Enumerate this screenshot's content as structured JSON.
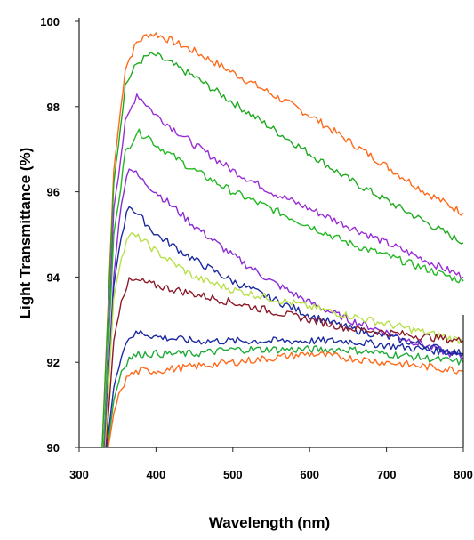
{
  "chart_data": {
    "type": "line",
    "title": "",
    "xlabel": "Wavelength (nm)",
    "ylabel": "Light Transmittance (%)",
    "xlim": [
      300,
      800
    ],
    "ylim": [
      90,
      100
    ],
    "xticks": [
      300,
      400,
      500,
      600,
      700,
      800
    ],
    "yticks": [
      90,
      92,
      94,
      96,
      98,
      100
    ],
    "xtick_labels": [
      "300",
      "400",
      "500",
      "600",
      "700",
      "800"
    ],
    "ytick_labels": [
      "90",
      "92",
      "94",
      "96",
      "98",
      "100"
    ],
    "grid": false,
    "legend": "none",
    "series": [
      {
        "color": "#ff6a1a",
        "x": [
          330,
          345,
          360,
          375,
          390,
          400,
          450,
          500,
          550,
          600,
          650,
          700,
          750,
          800
        ],
        "y": [
          90,
          96.5,
          98.9,
          99.5,
          99.7,
          99.7,
          99.3,
          98.8,
          98.3,
          97.8,
          97.2,
          96.6,
          96.0,
          95.5
        ]
      },
      {
        "color": "#1faa1f",
        "x": [
          330,
          345,
          360,
          375,
          390,
          400,
          450,
          500,
          550,
          600,
          650,
          700,
          750,
          800
        ],
        "y": [
          90,
          96.2,
          98.5,
          99.0,
          99.2,
          99.2,
          98.7,
          98.1,
          97.5,
          96.9,
          96.3,
          95.8,
          95.3,
          94.8
        ]
      },
      {
        "color": "#9b2bd6",
        "x": [
          332,
          345,
          360,
          375,
          390,
          400,
          450,
          500,
          550,
          600,
          650,
          700,
          750,
          800
        ],
        "y": [
          90,
          95.6,
          97.6,
          98.3,
          98.0,
          97.8,
          97.1,
          96.5,
          96.0,
          95.6,
          95.2,
          94.8,
          94.4,
          94.0
        ]
      },
      {
        "color": "#22b822",
        "x": [
          332,
          345,
          360,
          375,
          390,
          400,
          450,
          500,
          550,
          600,
          650,
          700,
          750,
          800
        ],
        "y": [
          90,
          95.0,
          96.9,
          97.4,
          97.3,
          97.1,
          96.5,
          96.0,
          95.6,
          95.2,
          94.8,
          94.5,
          94.2,
          93.9
        ]
      },
      {
        "color": "#8a2ad4",
        "x": [
          333,
          345,
          355,
          365,
          380,
          400,
          450,
          500,
          550,
          600,
          650,
          700,
          750,
          800
        ],
        "y": [
          90,
          94.0,
          95.8,
          96.6,
          96.3,
          96.0,
          95.2,
          94.5,
          93.9,
          93.4,
          93.0,
          92.7,
          92.4,
          92.1
        ]
      },
      {
        "color": "#1c2aa0",
        "x": [
          334,
          345,
          355,
          365,
          380,
          400,
          450,
          500,
          550,
          600,
          650,
          700,
          750,
          800
        ],
        "y": [
          90,
          93.8,
          95.0,
          95.7,
          95.4,
          95.0,
          94.4,
          93.9,
          93.5,
          93.1,
          92.8,
          92.6,
          92.4,
          92.2
        ]
      },
      {
        "color": "#b8e04a",
        "x": [
          334,
          345,
          355,
          365,
          380,
          400,
          450,
          500,
          550,
          600,
          650,
          700,
          750,
          800
        ],
        "y": [
          90,
          93.5,
          94.5,
          95.0,
          94.9,
          94.6,
          94.0,
          93.7,
          93.5,
          93.3,
          93.1,
          92.9,
          92.7,
          92.5
        ]
      },
      {
        "color": "#8b1a2a",
        "x": [
          335,
          345,
          355,
          365,
          380,
          400,
          450,
          500,
          550,
          600,
          650,
          700,
          750,
          800
        ],
        "y": [
          90,
          92.5,
          93.5,
          93.9,
          93.9,
          93.8,
          93.6,
          93.4,
          93.2,
          93.0,
          92.8,
          92.7,
          92.6,
          92.5
        ]
      },
      {
        "color": "#1c2aa0",
        "x": [
          336,
          345,
          355,
          365,
          380,
          400,
          450,
          500,
          550,
          600,
          650,
          700,
          750,
          800
        ],
        "y": [
          90,
          91.4,
          92.2,
          92.6,
          92.7,
          92.6,
          92.5,
          92.5,
          92.5,
          92.5,
          92.5,
          92.4,
          92.3,
          92.2
        ]
      },
      {
        "color": "#1faa3a",
        "x": [
          337,
          345,
          355,
          365,
          380,
          400,
          450,
          500,
          550,
          600,
          650,
          700,
          750,
          800
        ],
        "y": [
          90,
          91.1,
          91.8,
          92.1,
          92.2,
          92.2,
          92.2,
          92.3,
          92.3,
          92.3,
          92.3,
          92.2,
          92.1,
          92.0
        ]
      },
      {
        "color": "#ff6a1a",
        "x": [
          338,
          345,
          355,
          365,
          380,
          400,
          450,
          500,
          550,
          600,
          650,
          700,
          750,
          800
        ],
        "y": [
          90,
          90.8,
          91.4,
          91.7,
          91.8,
          91.8,
          91.9,
          92.0,
          92.1,
          92.2,
          92.1,
          92.0,
          91.9,
          91.8
        ]
      }
    ]
  }
}
